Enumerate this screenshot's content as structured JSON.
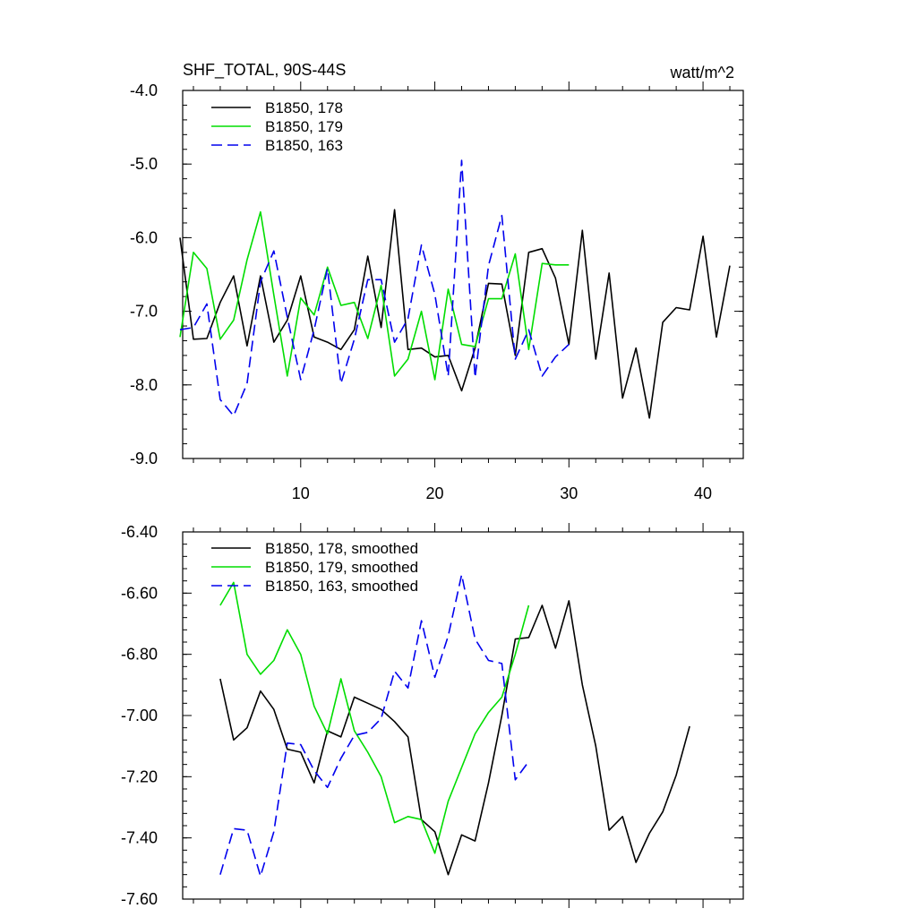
{
  "chart_data": [
    {
      "type": "line",
      "title": "SHF_TOTAL, 90S-44S",
      "units_label": "watt/m^2",
      "xlim": [
        1.2,
        43
      ],
      "ylim": [
        -9.0,
        -4.0
      ],
      "x_ticks": [
        10,
        20,
        30,
        40
      ],
      "x_tick_labels": [
        "10",
        "20",
        "30",
        "40"
      ],
      "y_ticks": [
        -4.0,
        -5.0,
        -6.0,
        -7.0,
        -8.0,
        -9.0
      ],
      "y_tick_labels": [
        "-4.0",
        "-5.0",
        "-6.0",
        "-7.0",
        "-8.0",
        "-9.0"
      ],
      "legend_position": "top-left",
      "series": [
        {
          "name": "B1850, 178",
          "color": "#000000",
          "dash": "solid",
          "x": [
            1,
            2,
            3,
            4,
            5,
            6,
            7,
            8,
            9,
            10,
            11,
            12,
            13,
            14,
            15,
            16,
            17,
            18,
            19,
            20,
            21,
            22,
            23,
            24,
            25,
            26,
            27,
            28,
            29,
            30,
            31,
            32,
            33,
            34,
            35,
            36,
            37,
            38,
            39,
            40,
            41,
            42
          ],
          "values": [
            -6.0,
            -7.38,
            -7.37,
            -6.88,
            -6.52,
            -7.47,
            -6.52,
            -7.42,
            -7.12,
            -6.52,
            -7.35,
            -7.42,
            -7.52,
            -7.25,
            -6.25,
            -7.22,
            -5.62,
            -7.52,
            -7.5,
            -7.62,
            -7.6,
            -8.08,
            -7.5,
            -6.62,
            -6.63,
            -7.6,
            -6.2,
            -6.15,
            -6.55,
            -7.45,
            -5.9,
            -7.65,
            -6.48,
            -8.18,
            -7.5,
            -8.45,
            -7.15,
            -6.95,
            -6.98,
            -5.98,
            -7.35,
            -6.38
          ]
        },
        {
          "name": "B1850, 179",
          "color": "#00dd00",
          "dash": "solid",
          "x": [
            1,
            2,
            3,
            4,
            5,
            6,
            7,
            8,
            9,
            10,
            11,
            12,
            13,
            14,
            15,
            16,
            17,
            18,
            19,
            20,
            21,
            22,
            23,
            24,
            25,
            26,
            27,
            28,
            29,
            30
          ],
          "values": [
            -7.35,
            -6.2,
            -6.42,
            -7.38,
            -7.12,
            -6.3,
            -5.65,
            -6.78,
            -7.88,
            -6.82,
            -7.05,
            -6.4,
            -6.92,
            -6.88,
            -7.37,
            -6.65,
            -7.88,
            -7.65,
            -7.0,
            -7.93,
            -6.7,
            -7.45,
            -7.48,
            -6.83,
            -6.83,
            -6.22,
            -7.52,
            -6.35,
            -6.37,
            -6.37
          ]
        },
        {
          "name": "B1850, 163",
          "color": "#0000ee",
          "dash": "dashed",
          "x": [
            1,
            2,
            3,
            4,
            5,
            6,
            7,
            8,
            9,
            10,
            11,
            12,
            13,
            14,
            15,
            16,
            17,
            18,
            19,
            20,
            21,
            22,
            23,
            24,
            25,
            26,
            27,
            28,
            29,
            30
          ],
          "values": [
            -7.25,
            -7.22,
            -6.9,
            -8.2,
            -8.42,
            -7.98,
            -6.6,
            -6.18,
            -7.08,
            -7.93,
            -7.25,
            -6.42,
            -7.98,
            -7.38,
            -6.57,
            -6.57,
            -7.42,
            -7.1,
            -6.1,
            -6.77,
            -7.88,
            -4.95,
            -7.9,
            -6.38,
            -5.7,
            -7.65,
            -7.25,
            -7.88,
            -7.62,
            -7.45
          ]
        }
      ]
    },
    {
      "type": "line",
      "title": "",
      "units_label": "",
      "xlim": [
        1.2,
        43
      ],
      "ylim": [
        -7.6,
        -6.4
      ],
      "x_ticks": [
        10,
        20,
        30,
        40
      ],
      "x_tick_labels": [],
      "y_ticks": [
        -6.4,
        -6.6,
        -6.8,
        -7.0,
        -7.2,
        -7.4,
        -7.6
      ],
      "y_tick_labels": [
        "-6.40",
        "-6.60",
        "-6.80",
        "-7.00",
        "-7.20",
        "-7.40",
        "-7.60"
      ],
      "legend_position": "top-left",
      "series": [
        {
          "name": "B1850, 178, smoothed",
          "color": "#000000",
          "dash": "solid",
          "x": [
            4,
            5,
            6,
            7,
            8,
            9,
            10,
            11,
            12,
            13,
            14,
            15,
            16,
            17,
            18,
            19,
            20,
            21,
            22,
            23,
            24,
            25,
            26,
            27,
            28,
            29,
            30,
            31,
            32,
            33,
            34,
            35,
            36,
            37,
            38,
            39
          ],
          "values": [
            -6.88,
            -7.08,
            -7.04,
            -6.92,
            -6.98,
            -7.11,
            -7.12,
            -7.22,
            -7.05,
            -7.07,
            -6.94,
            -6.96,
            -6.98,
            -7.02,
            -7.07,
            -7.34,
            -7.38,
            -7.52,
            -7.39,
            -7.41,
            -7.22,
            -7.0,
            -6.75,
            -6.745,
            -6.64,
            -6.78,
            -6.625,
            -6.9,
            -7.1,
            -7.375,
            -7.33,
            -7.48,
            -7.385,
            -7.315,
            -7.195,
            -7.035
          ]
        },
        {
          "name": "B1850, 179, smoothed",
          "color": "#00dd00",
          "dash": "solid",
          "x": [
            4,
            5,
            6,
            7,
            8,
            9,
            10,
            11,
            12,
            13,
            14,
            15,
            16,
            17,
            18,
            19,
            20,
            21,
            22,
            23,
            24,
            25,
            26,
            27
          ],
          "values": [
            -6.64,
            -6.565,
            -6.8,
            -6.865,
            -6.82,
            -6.72,
            -6.8,
            -6.97,
            -7.06,
            -6.88,
            -7.05,
            -7.12,
            -7.2,
            -7.35,
            -7.33,
            -7.34,
            -7.45,
            -7.28,
            -7.17,
            -7.06,
            -6.99,
            -6.94,
            -6.8,
            -6.64
          ]
        },
        {
          "name": "B1850, 163, smoothed",
          "color": "#0000ee",
          "dash": "dashed",
          "x": [
            4,
            5,
            6,
            7,
            8,
            9,
            10,
            11,
            12,
            13,
            14,
            15,
            16,
            17,
            18,
            19,
            20,
            21,
            22,
            23,
            24,
            25,
            26,
            27
          ],
          "values": [
            -7.52,
            -7.37,
            -7.375,
            -7.525,
            -7.38,
            -7.09,
            -7.095,
            -7.18,
            -7.235,
            -7.14,
            -7.065,
            -7.055,
            -7.01,
            -6.855,
            -6.91,
            -6.69,
            -6.875,
            -6.74,
            -6.54,
            -6.75,
            -6.82,
            -6.83,
            -7.21,
            -7.15
          ]
        }
      ]
    }
  ]
}
